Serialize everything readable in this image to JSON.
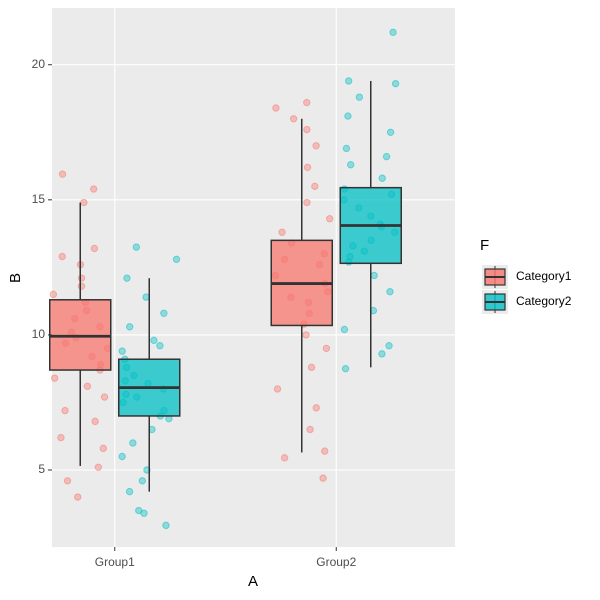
{
  "chart_data": {
    "type": "boxplot",
    "x_label": "A",
    "y_label": "B",
    "categories": [
      "Group1",
      "Group2"
    ],
    "legend_title": "F",
    "ylim": [
      2.15,
      22.1
    ],
    "yticks": [
      5,
      10,
      15,
      20
    ],
    "grid": true,
    "series": [
      {
        "name": "Category1",
        "color": "#F8766D",
        "boxes": [
          {
            "whisker_low": 5.15,
            "q1": 8.7,
            "median": 9.95,
            "q3": 11.3,
            "whisker_high": 14.9
          },
          {
            "whisker_low": 5.65,
            "q1": 10.35,
            "median": 11.9,
            "q3": 13.5,
            "whisker_high": 18.0
          }
        ],
        "points": [
          [
            15.95,
            15.4,
            14.9,
            4.0,
            4.6,
            5.1,
            13.2,
            12.6,
            12.1,
            11.8,
            11.5,
            11.2,
            10.9,
            10.6,
            10.3,
            10.1,
            9.9,
            9.7,
            9.5,
            9.2,
            8.9,
            8.7,
            8.4,
            8.1,
            7.7,
            7.2,
            6.8,
            6.2,
            5.8,
            12.9
          ],
          [
            18.6,
            18.4,
            18.0,
            4.7,
            5.45,
            5.7,
            6.5,
            7.3,
            8.0,
            8.8,
            9.5,
            10.0,
            10.4,
            10.8,
            11.2,
            11.6,
            11.9,
            12.2,
            12.6,
            13.0,
            13.4,
            13.8,
            14.3,
            14.9,
            15.5,
            16.2,
            17.0,
            17.6,
            11.4,
            12.8
          ]
        ]
      },
      {
        "name": "Category2",
        "color": "#00BFC4",
        "boxes": [
          {
            "whisker_low": 4.2,
            "q1": 7.0,
            "median": 8.05,
            "q3": 9.1,
            "whisker_high": 12.1
          },
          {
            "whisker_low": 8.8,
            "q1": 12.65,
            "median": 14.05,
            "q3": 15.45,
            "whisker_high": 19.4
          }
        ],
        "points": [
          [
            13.25,
            12.8,
            12.1,
            11.4,
            2.95,
            3.4,
            3.5,
            4.2,
            4.6,
            5.0,
            5.5,
            6.0,
            6.5,
            6.9,
            7.2,
            7.5,
            7.8,
            8.0,
            8.2,
            8.5,
            8.8,
            9.1,
            9.4,
            9.8,
            10.3,
            10.8,
            7.0,
            7.7,
            8.3,
            9.6
          ],
          [
            21.2,
            19.4,
            19.3,
            18.8,
            8.75,
            9.3,
            9.6,
            10.2,
            10.9,
            11.6,
            12.2,
            12.7,
            13.1,
            13.5,
            13.8,
            14.1,
            14.4,
            14.7,
            15.0,
            15.4,
            15.8,
            16.3,
            16.9,
            17.5,
            18.1,
            12.9,
            14.0,
            15.2,
            13.3,
            16.6
          ]
        ]
      }
    ]
  }
}
